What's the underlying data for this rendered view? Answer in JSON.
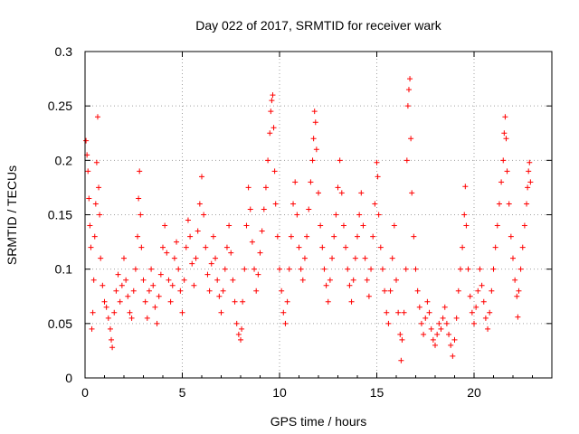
{
  "chart_data": {
    "type": "scatter",
    "title": "Day 022 of 2017, SRMTID for receiver wark",
    "xlabel": "GPS time / hours",
    "ylabel": "SRMTID / TECUs",
    "xlim": [
      0,
      24
    ],
    "ylim": [
      0,
      0.3
    ],
    "xticks": [
      0,
      5,
      10,
      15,
      20
    ],
    "xtick_labels": [
      "0",
      "5",
      "10",
      "15",
      "20"
    ],
    "yticks": [
      0,
      0.05,
      0.1,
      0.15,
      0.2,
      0.25,
      0.3
    ],
    "ytick_labels": [
      "0",
      "0.05",
      "0.1",
      "0.15",
      "0.2",
      "0.25",
      "0.3"
    ],
    "grid": true,
    "marker": "+",
    "color": "#ff0000",
    "series": [
      {
        "points": [
          [
            0.05,
            0.218
          ],
          [
            0.1,
            0.205
          ],
          [
            0.15,
            0.19
          ],
          [
            0.2,
            0.165
          ],
          [
            0.25,
            0.14
          ],
          [
            0.3,
            0.12
          ],
          [
            0.35,
            0.045
          ],
          [
            0.4,
            0.06
          ],
          [
            0.45,
            0.09
          ],
          [
            0.5,
            0.13
          ],
          [
            0.55,
            0.16
          ],
          [
            0.6,
            0.198
          ],
          [
            0.65,
            0.24
          ],
          [
            0.7,
            0.175
          ],
          [
            0.75,
            0.15
          ],
          [
            0.8,
            0.11
          ],
          [
            0.9,
            0.085
          ],
          [
            1.0,
            0.07
          ],
          [
            1.1,
            0.065
          ],
          [
            1.2,
            0.055
          ],
          [
            1.3,
            0.045
          ],
          [
            1.35,
            0.035
          ],
          [
            1.4,
            0.028
          ],
          [
            1.5,
            0.06
          ],
          [
            1.6,
            0.08
          ],
          [
            1.7,
            0.095
          ],
          [
            1.8,
            0.07
          ],
          [
            1.9,
            0.085
          ],
          [
            2.0,
            0.11
          ],
          [
            2.1,
            0.09
          ],
          [
            2.2,
            0.075
          ],
          [
            2.3,
            0.06
          ],
          [
            2.4,
            0.055
          ],
          [
            2.5,
            0.08
          ],
          [
            2.6,
            0.1
          ],
          [
            2.7,
            0.13
          ],
          [
            2.75,
            0.165
          ],
          [
            2.8,
            0.19
          ],
          [
            2.85,
            0.15
          ],
          [
            2.9,
            0.12
          ],
          [
            3.0,
            0.09
          ],
          [
            3.1,
            0.07
          ],
          [
            3.2,
            0.055
          ],
          [
            3.3,
            0.08
          ],
          [
            3.4,
            0.1
          ],
          [
            3.5,
            0.085
          ],
          [
            3.6,
            0.065
          ],
          [
            3.7,
            0.05
          ],
          [
            3.8,
            0.075
          ],
          [
            3.9,
            0.095
          ],
          [
            4.0,
            0.12
          ],
          [
            4.1,
            0.14
          ],
          [
            4.2,
            0.115
          ],
          [
            4.3,
            0.09
          ],
          [
            4.4,
            0.07
          ],
          [
            4.5,
            0.085
          ],
          [
            4.6,
            0.11
          ],
          [
            4.7,
            0.125
          ],
          [
            4.8,
            0.1
          ],
          [
            4.9,
            0.08
          ],
          [
            5.0,
            0.06
          ],
          [
            5.1,
            0.09
          ],
          [
            5.2,
            0.12
          ],
          [
            5.3,
            0.145
          ],
          [
            5.4,
            0.13
          ],
          [
            5.5,
            0.105
          ],
          [
            5.6,
            0.085
          ],
          [
            5.7,
            0.11
          ],
          [
            5.8,
            0.135
          ],
          [
            5.9,
            0.16
          ],
          [
            6.0,
            0.185
          ],
          [
            6.1,
            0.15
          ],
          [
            6.2,
            0.12
          ],
          [
            6.3,
            0.095
          ],
          [
            6.4,
            0.08
          ],
          [
            6.5,
            0.105
          ],
          [
            6.6,
            0.13
          ],
          [
            6.7,
            0.11
          ],
          [
            6.8,
            0.09
          ],
          [
            6.9,
            0.075
          ],
          [
            7.0,
            0.06
          ],
          [
            7.1,
            0.08
          ],
          [
            7.2,
            0.1
          ],
          [
            7.3,
            0.12
          ],
          [
            7.4,
            0.14
          ],
          [
            7.5,
            0.115
          ],
          [
            7.6,
            0.09
          ],
          [
            7.7,
            0.07
          ],
          [
            7.8,
            0.05
          ],
          [
            7.9,
            0.04
          ],
          [
            8.0,
            0.035
          ],
          [
            8.05,
            0.045
          ],
          [
            8.1,
            0.07
          ],
          [
            8.2,
            0.1
          ],
          [
            8.3,
            0.14
          ],
          [
            8.4,
            0.175
          ],
          [
            8.5,
            0.155
          ],
          [
            8.6,
            0.125
          ],
          [
            8.7,
            0.1
          ],
          [
            8.8,
            0.08
          ],
          [
            8.9,
            0.095
          ],
          [
            9.0,
            0.115
          ],
          [
            9.1,
            0.135
          ],
          [
            9.2,
            0.155
          ],
          [
            9.3,
            0.175
          ],
          [
            9.4,
            0.2
          ],
          [
            9.5,
            0.225
          ],
          [
            9.55,
            0.245
          ],
          [
            9.6,
            0.255
          ],
          [
            9.65,
            0.26
          ],
          [
            9.7,
            0.23
          ],
          [
            9.75,
            0.19
          ],
          [
            9.8,
            0.16
          ],
          [
            9.9,
            0.13
          ],
          [
            10.0,
            0.1
          ],
          [
            10.1,
            0.08
          ],
          [
            10.2,
            0.06
          ],
          [
            10.3,
            0.05
          ],
          [
            10.4,
            0.07
          ],
          [
            10.5,
            0.1
          ],
          [
            10.6,
            0.13
          ],
          [
            10.7,
            0.16
          ],
          [
            10.8,
            0.18
          ],
          [
            10.9,
            0.15
          ],
          [
            11.0,
            0.12
          ],
          [
            11.1,
            0.1
          ],
          [
            11.2,
            0.09
          ],
          [
            11.3,
            0.11
          ],
          [
            11.4,
            0.13
          ],
          [
            11.5,
            0.155
          ],
          [
            11.6,
            0.18
          ],
          [
            11.7,
            0.2
          ],
          [
            11.75,
            0.22
          ],
          [
            11.8,
            0.245
          ],
          [
            11.85,
            0.235
          ],
          [
            11.9,
            0.21
          ],
          [
            12.0,
            0.17
          ],
          [
            12.1,
            0.14
          ],
          [
            12.2,
            0.12
          ],
          [
            12.3,
            0.1
          ],
          [
            12.4,
            0.085
          ],
          [
            12.5,
            0.07
          ],
          [
            12.6,
            0.09
          ],
          [
            12.7,
            0.11
          ],
          [
            12.8,
            0.13
          ],
          [
            12.9,
            0.15
          ],
          [
            13.0,
            0.175
          ],
          [
            13.1,
            0.2
          ],
          [
            13.2,
            0.17
          ],
          [
            13.3,
            0.14
          ],
          [
            13.4,
            0.12
          ],
          [
            13.5,
            0.1
          ],
          [
            13.6,
            0.085
          ],
          [
            13.7,
            0.07
          ],
          [
            13.8,
            0.09
          ],
          [
            13.9,
            0.11
          ],
          [
            14.0,
            0.13
          ],
          [
            14.1,
            0.15
          ],
          [
            14.2,
            0.17
          ],
          [
            14.3,
            0.14
          ],
          [
            14.4,
            0.11
          ],
          [
            14.5,
            0.09
          ],
          [
            14.6,
            0.075
          ],
          [
            14.7,
            0.1
          ],
          [
            14.8,
            0.13
          ],
          [
            14.9,
            0.16
          ],
          [
            15.0,
            0.198
          ],
          [
            15.05,
            0.185
          ],
          [
            15.1,
            0.15
          ],
          [
            15.2,
            0.12
          ],
          [
            15.3,
            0.1
          ],
          [
            15.4,
            0.08
          ],
          [
            15.5,
            0.06
          ],
          [
            15.6,
            0.05
          ],
          [
            15.7,
            0.08
          ],
          [
            15.8,
            0.11
          ],
          [
            15.9,
            0.14
          ],
          [
            16.0,
            0.09
          ],
          [
            16.1,
            0.06
          ],
          [
            16.2,
            0.04
          ],
          [
            16.25,
            0.016
          ],
          [
            16.3,
            0.035
          ],
          [
            16.4,
            0.06
          ],
          [
            16.5,
            0.1
          ],
          [
            16.55,
            0.2
          ],
          [
            16.6,
            0.25
          ],
          [
            16.65,
            0.265
          ],
          [
            16.7,
            0.275
          ],
          [
            16.75,
            0.22
          ],
          [
            16.8,
            0.17
          ],
          [
            16.9,
            0.13
          ],
          [
            17.0,
            0.1
          ],
          [
            17.1,
            0.08
          ],
          [
            17.2,
            0.065
          ],
          [
            17.3,
            0.05
          ],
          [
            17.4,
            0.04
          ],
          [
            17.5,
            0.055
          ],
          [
            17.6,
            0.07
          ],
          [
            17.7,
            0.06
          ],
          [
            17.8,
            0.045
          ],
          [
            17.9,
            0.035
          ],
          [
            18.0,
            0.03
          ],
          [
            18.1,
            0.04
          ],
          [
            18.2,
            0.05
          ],
          [
            18.3,
            0.045
          ],
          [
            18.4,
            0.055
          ],
          [
            18.5,
            0.065
          ],
          [
            18.6,
            0.05
          ],
          [
            18.7,
            0.04
          ],
          [
            18.8,
            0.03
          ],
          [
            18.9,
            0.02
          ],
          [
            19.0,
            0.035
          ],
          [
            19.1,
            0.055
          ],
          [
            19.2,
            0.08
          ],
          [
            19.3,
            0.1
          ],
          [
            19.4,
            0.12
          ],
          [
            19.5,
            0.15
          ],
          [
            19.55,
            0.176
          ],
          [
            19.6,
            0.14
          ],
          [
            19.7,
            0.1
          ],
          [
            19.8,
            0.075
          ],
          [
            19.9,
            0.06
          ],
          [
            20.0,
            0.05
          ],
          [
            20.1,
            0.065
          ],
          [
            20.2,
            0.08
          ],
          [
            20.3,
            0.1
          ],
          [
            20.4,
            0.085
          ],
          [
            20.5,
            0.07
          ],
          [
            20.6,
            0.055
          ],
          [
            20.7,
            0.045
          ],
          [
            20.8,
            0.06
          ],
          [
            20.9,
            0.08
          ],
          [
            21.0,
            0.1
          ],
          [
            21.1,
            0.12
          ],
          [
            21.2,
            0.14
          ],
          [
            21.3,
            0.16
          ],
          [
            21.4,
            0.18
          ],
          [
            21.5,
            0.2
          ],
          [
            21.55,
            0.225
          ],
          [
            21.6,
            0.24
          ],
          [
            21.65,
            0.22
          ],
          [
            21.7,
            0.19
          ],
          [
            21.8,
            0.16
          ],
          [
            21.9,
            0.13
          ],
          [
            22.0,
            0.11
          ],
          [
            22.1,
            0.09
          ],
          [
            22.2,
            0.075
          ],
          [
            22.25,
            0.056
          ],
          [
            22.3,
            0.08
          ],
          [
            22.4,
            0.1
          ],
          [
            22.5,
            0.12
          ],
          [
            22.6,
            0.14
          ],
          [
            22.7,
            0.16
          ],
          [
            22.75,
            0.175
          ],
          [
            22.8,
            0.19
          ],
          [
            22.85,
            0.198
          ],
          [
            22.9,
            0.18
          ]
        ]
      }
    ]
  }
}
